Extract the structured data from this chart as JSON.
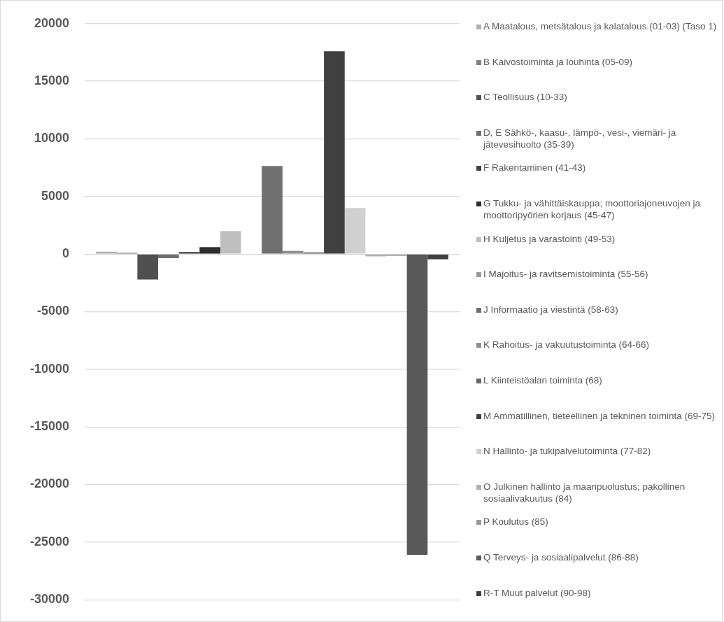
{
  "chart_data": {
    "type": "bar",
    "categories": [
      null
    ],
    "ylim": [
      -30000,
      20000
    ],
    "yticks": [
      -30000,
      -25000,
      -20000,
      -15000,
      -10000,
      -5000,
      0,
      5000,
      10000,
      15000,
      20000
    ],
    "grid": "y",
    "legend": "right",
    "series": [
      {
        "name": "A Maatalous, metsätalous ja kalatalous (01-03) (Taso 1)",
        "color": "#b0b0b0",
        "values": [
          200
        ]
      },
      {
        "name": "B Kaivostoiminta ja louhinta (05-09)",
        "color": "#808080",
        "values": [
          120
        ]
      },
      {
        "name": "C Teollisuus (10-33)",
        "color": "#505050",
        "values": [
          -2200
        ]
      },
      {
        "name": "D, E Sähkö-, kaasu-, lämpö-, vesi-, viemäri- ja jätevesihuolto (35-39)",
        "color": "#6e6e6e",
        "values": [
          -350
        ]
      },
      {
        "name": "F Rakentaminen (41-43)",
        "color": "#404040",
        "values": [
          180
        ]
      },
      {
        "name": "G Tukku- ja vähittäiskauppa; moottoriajoneuvojen ja moottoripyörien korjaus (45-47)",
        "color": "#2e2e2e",
        "values": [
          600
        ]
      },
      {
        "name": "H Kuljetus ja varastointi (49-53)",
        "color": "#c0c0c0",
        "values": [
          2000
        ]
      },
      {
        "name": "I Majoitus- ja ravitsemistoiminta (55-56)",
        "color": "#9a9a9a",
        "values": [
          null
        ]
      },
      {
        "name": "J Informaatio ja viestintä (58-63)",
        "color": "#707070",
        "values": [
          7650
        ]
      },
      {
        "name": "K Rahoitus- ja vakuutustoiminta (64-66)",
        "color": "#8e8e8e",
        "values": [
          280
        ]
      },
      {
        "name": "L Kiinteistöalan toiminta (68)",
        "color": "#666666",
        "values": [
          150
        ]
      },
      {
        "name": "M Ammatillinen, tieteellinen ja tekninen toiminta (69-75)",
        "color": "#404040",
        "values": [
          17600
        ]
      },
      {
        "name": "N Hallinto- ja tukipalvelutoiminta (77-82)",
        "color": "#d0d0d0",
        "values": [
          4000
        ]
      },
      {
        "name": "O Julkinen hallinto ja maanpuolustus; pakollinen sosiaalivakuutus (84)",
        "color": "#b0b0b0",
        "values": [
          -200
        ]
      },
      {
        "name": "P Koulutus (85)",
        "color": "#999999",
        "values": [
          -150
        ]
      },
      {
        "name": "Q Terveys- ja sosiaalipalvelut (86-88)",
        "color": "#595959",
        "values": [
          -26100
        ]
      },
      {
        "name": "R-T Muut palvelut (90-98)",
        "color": "#404040",
        "values": [
          -450
        ]
      }
    ]
  }
}
